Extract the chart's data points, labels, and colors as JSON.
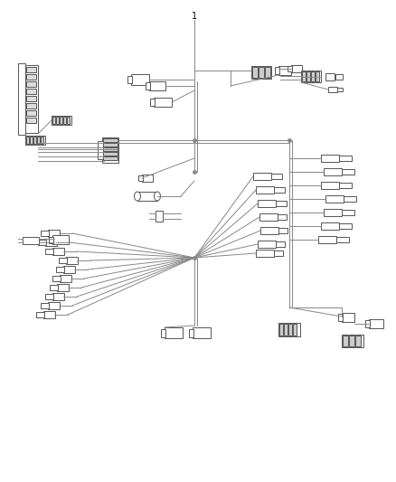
{
  "bg_color": "#ffffff",
  "lc": "#888888",
  "cc": "#555555",
  "lw": 0.7,
  "fig_width": 4.38,
  "fig_height": 5.33,
  "dpi": 100
}
